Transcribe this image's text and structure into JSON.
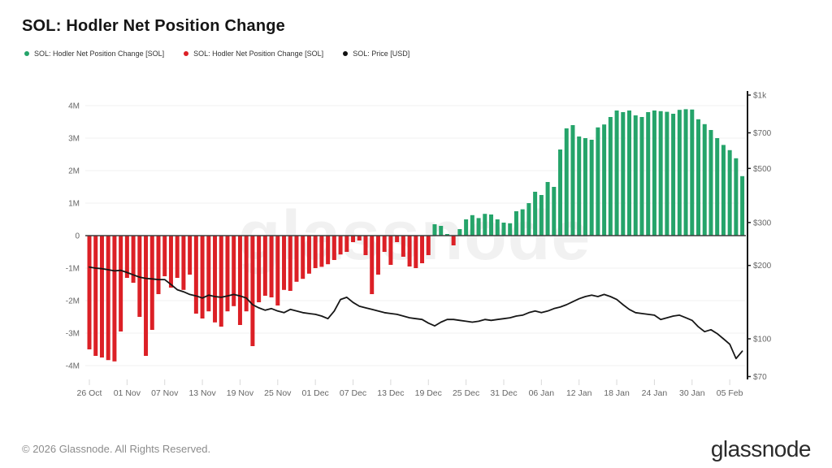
{
  "header": {
    "title": "SOL: Hodler Net Position Change"
  },
  "legend": {
    "items": [
      {
        "label": "SOL: Hodler Net Position Change [SOL]",
        "color": "#25a46a"
      },
      {
        "label": "SOL: Hodler Net Position Change [SOL]",
        "color": "#dc2026"
      },
      {
        "label": "SOL: Price [USD]",
        "color": "#111111"
      }
    ]
  },
  "watermark": {
    "text": "glassnode"
  },
  "footer": {
    "copyright": "© 2026 Glassnode. All Rights Reserved.",
    "brand": "glassnode"
  },
  "chart_data": {
    "type": "bar",
    "title": "SOL: Hodler Net Position Change",
    "grid": "horizontal-light",
    "legend_position": "top-left",
    "x_axis": {
      "start_label": "26 Oct",
      "tick_interval_days": 6,
      "tick_labels": [
        "26 Oct",
        "01 Nov",
        "07 Nov",
        "13 Nov",
        "19 Nov",
        "25 Nov",
        "01 Dec",
        "07 Dec",
        "13 Dec",
        "19 Dec",
        "25 Dec",
        "31 Dec",
        "06 Jan",
        "12 Jan",
        "18 Jan",
        "24 Jan",
        "30 Jan",
        "05 Feb"
      ]
    },
    "left_axis": {
      "tick_labels": [
        "4M",
        "3M",
        "2M",
        "1M",
        "0",
        "-1M",
        "-2M",
        "-3M",
        "-4M"
      ],
      "tick_values_millions": [
        4,
        3,
        2,
        1,
        0,
        -1,
        -2,
        -3,
        -4
      ],
      "range_millions": [
        -4.5,
        4.5
      ]
    },
    "right_axis": {
      "scale": "log",
      "tick_labels": [
        "$1k",
        "$700",
        "$500",
        "$300",
        "$200",
        "$100",
        "$70"
      ],
      "tick_values_usd": [
        1000,
        700,
        500,
        300,
        200,
        100,
        70
      ],
      "range_usd": [
        70,
        1000
      ]
    },
    "series": [
      {
        "name": "SOL: Hodler Net Position Change [SOL]",
        "type": "bar",
        "unit": "SOL, millions",
        "color_positive": "#25a46a",
        "color_negative": "#dc2026",
        "values_millions": [
          -3.5,
          -3.7,
          -3.75,
          -3.83,
          -3.87,
          -2.95,
          -1.3,
          -1.45,
          -2.5,
          -3.7,
          -2.9,
          -1.8,
          -1.25,
          -1.6,
          -1.3,
          -1.67,
          -1.2,
          -2.4,
          -2.55,
          -2.33,
          -2.67,
          -2.8,
          -2.33,
          -2.17,
          -2.75,
          -2.33,
          -3.4,
          -2.05,
          -1.85,
          -1.9,
          -2.15,
          -1.67,
          -1.7,
          -1.42,
          -1.33,
          -1.17,
          -1.0,
          -0.96,
          -0.88,
          -0.75,
          -0.58,
          -0.5,
          -0.2,
          -0.15,
          -0.6,
          -1.8,
          -1.2,
          -0.5,
          -0.9,
          -0.2,
          -0.65,
          -0.95,
          -1.0,
          -0.85,
          -0.6,
          0.35,
          0.3,
          0.05,
          -0.3,
          0.2,
          0.5,
          0.63,
          0.54,
          0.67,
          0.65,
          0.5,
          0.4,
          0.38,
          0.75,
          0.81,
          1.0,
          1.35,
          1.25,
          1.65,
          1.5,
          2.65,
          3.3,
          3.4,
          3.05,
          3.0,
          2.95,
          3.33,
          3.42,
          3.65,
          3.85,
          3.8,
          3.85,
          3.7,
          3.65,
          3.8,
          3.85,
          3.83,
          3.81,
          3.75,
          3.87,
          3.89,
          3.88,
          3.58,
          3.43,
          3.25,
          3.0,
          2.79,
          2.63,
          2.38,
          1.83
        ]
      },
      {
        "name": "SOL: Price [USD]",
        "type": "line",
        "unit": "USD",
        "color": "#161616",
        "values_usd": [
          197,
          195,
          194,
          192,
          190,
          191,
          187,
          183,
          179,
          177,
          176,
          175,
          175,
          167,
          159,
          156,
          152,
          150,
          147,
          151,
          149,
          148,
          150,
          152,
          150,
          147,
          138,
          134,
          131,
          133,
          130,
          128,
          132,
          130,
          128,
          127,
          126,
          124,
          121,
          130,
          145,
          148,
          141,
          136,
          134,
          132,
          130,
          128,
          127,
          126,
          124,
          122,
          121,
          120,
          116,
          113,
          117,
          120,
          120,
          119,
          118,
          117,
          118,
          120,
          119,
          120,
          121,
          122,
          124,
          125,
          128,
          130,
          128,
          130,
          133,
          135,
          138,
          142,
          146,
          149,
          151,
          149,
          152,
          149,
          145,
          138,
          132,
          128,
          127,
          126,
          125,
          120,
          122,
          124,
          125,
          122,
          119,
          112,
          107,
          109,
          105,
          100,
          95,
          83,
          89
        ]
      }
    ]
  }
}
